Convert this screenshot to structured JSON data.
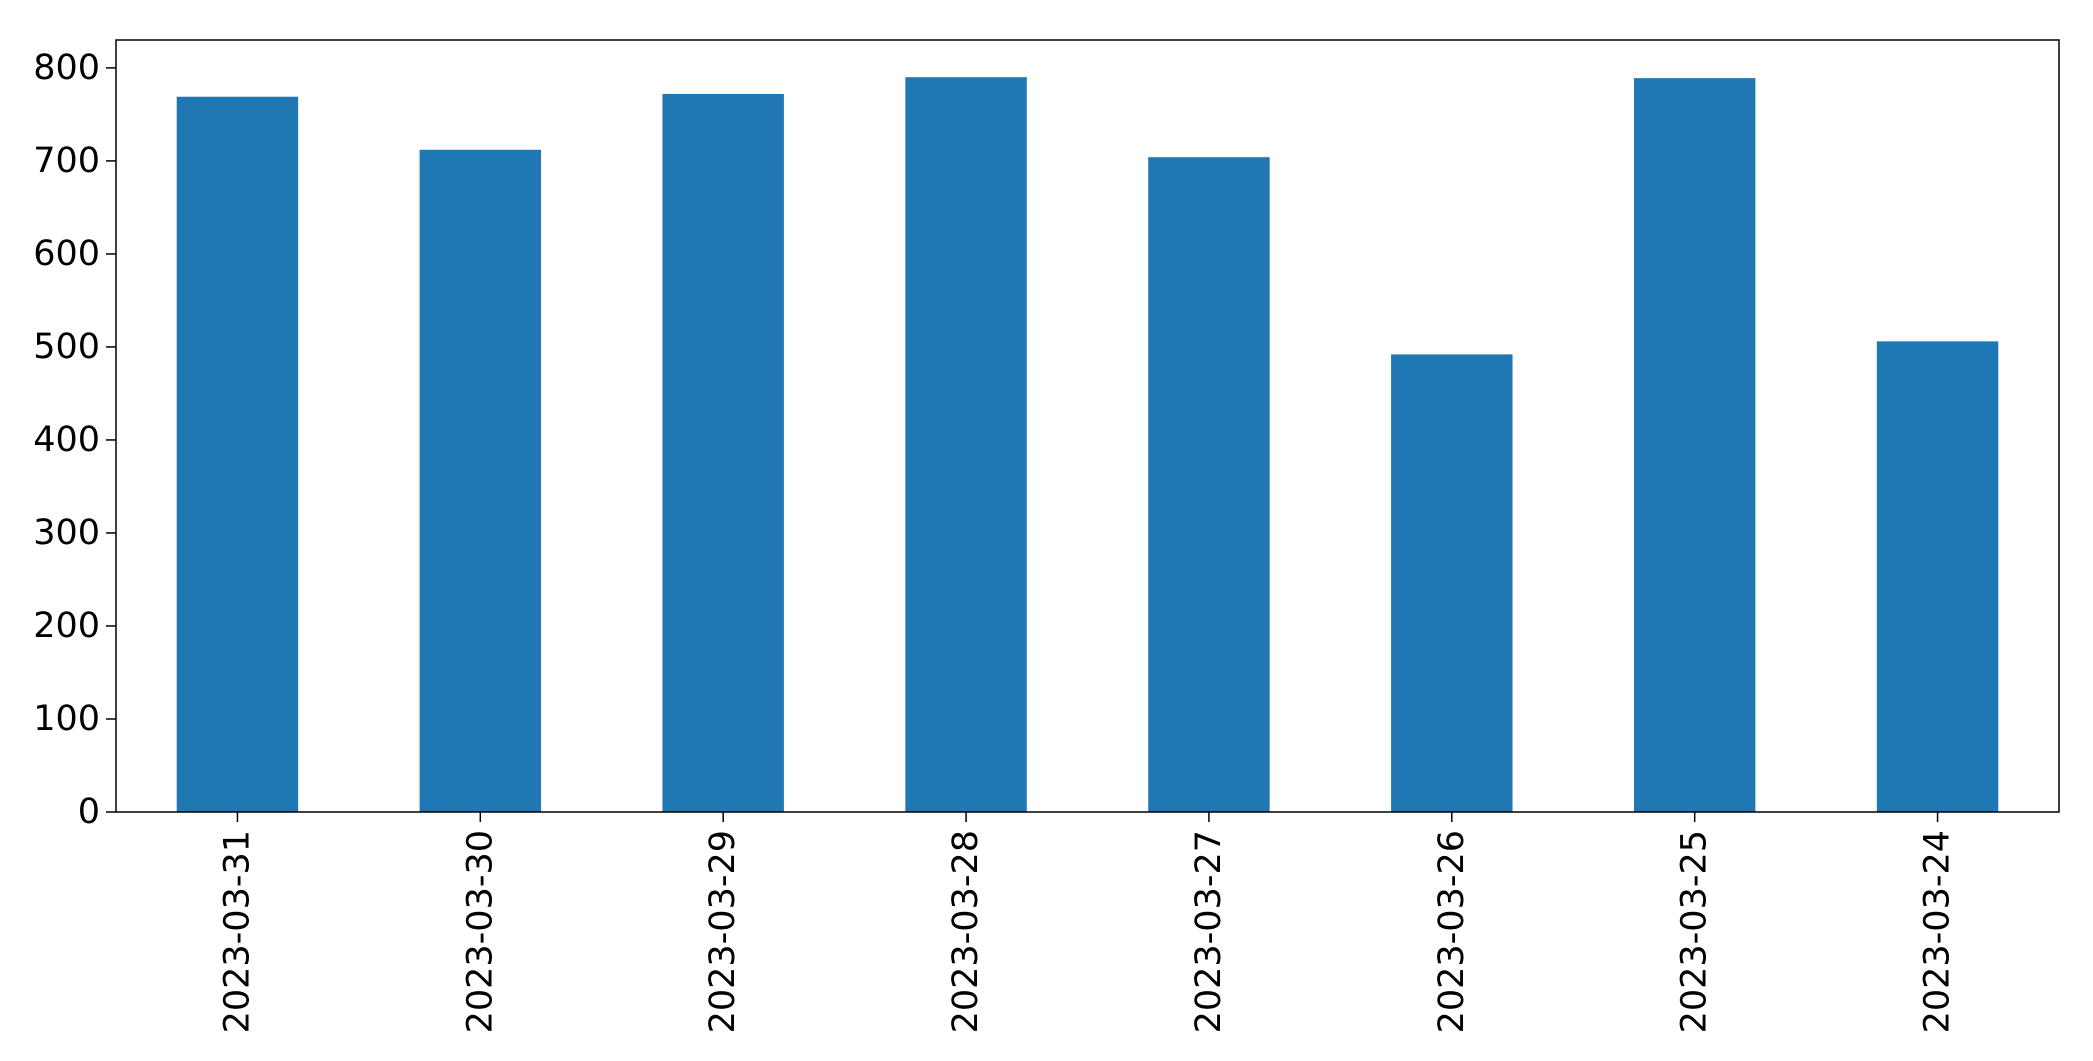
{
  "chart_data": {
    "type": "bar",
    "title": "",
    "xlabel": "",
    "ylabel": "",
    "categories": [
      "2023-03-31",
      "2023-03-30",
      "2023-03-29",
      "2023-03-28",
      "2023-03-27",
      "2023-03-26",
      "2023-03-25",
      "2023-03-24"
    ],
    "values": [
      769,
      712,
      772,
      790,
      704,
      492,
      789,
      506
    ],
    "ylim": [
      0,
      830
    ],
    "yticks": [
      0,
      100,
      200,
      300,
      400,
      500,
      600,
      700,
      800
    ],
    "ytick_labels": [
      "0",
      "100",
      "200",
      "300",
      "400",
      "500",
      "600",
      "700",
      "800"
    ],
    "bar_color": "#1f77b4",
    "grid": false,
    "legend": false
  }
}
